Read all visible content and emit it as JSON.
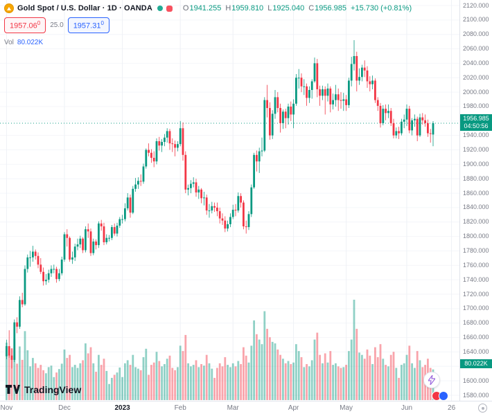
{
  "header": {
    "symbol_title": "Gold Spot / U.S. Dollar · 1D · OANDA",
    "ohlc": {
      "o_label": "O",
      "o_value": "1941.255",
      "h_label": "H",
      "h_value": "1959.810",
      "l_label": "L",
      "l_value": "1925.040",
      "c_label": "C",
      "c_value": "1956.985",
      "change": "+15.730 (+0.81%)"
    },
    "bid": "1957.06",
    "bid_sup": "0",
    "spread": "25.0",
    "ask": "1957.31",
    "ask_sup": "0",
    "vol_label": "Vol",
    "vol_value": "80.022K"
  },
  "axis": {
    "last_price": "1956.985",
    "countdown": "04:50:56",
    "volume_flag": "80.022K"
  },
  "footer": {
    "brand": "TradingView"
  },
  "colors": {
    "up": "#089981",
    "down": "#F23645",
    "vol_up": "rgba(8,153,129,0.45)",
    "vol_down": "rgba(242,54,69,0.45)",
    "flag_bg": "#089981",
    "bid": "#F23645",
    "ask": "#2962FF",
    "axis_text": "#787B86",
    "title_text": "#131722",
    "grid_v": "#EEF1F6",
    "grid_h": "#F4F6FA"
  },
  "chart_data": {
    "type": "candlestick",
    "title": "Gold Spot / U.S. Dollar",
    "interval": "1D",
    "exchange": "OANDA",
    "current": {
      "open": 1941.255,
      "high": 1959.81,
      "low": 1925.04,
      "close": 1956.985,
      "change": 15.73,
      "change_pct": 0.81,
      "volume": "80.022K"
    },
    "y_axis": {
      "min": 1580,
      "max": 2120,
      "step": 20,
      "decimals": 3
    },
    "x_ticks": [
      {
        "label": "Nov",
        "i": 0
      },
      {
        "label": "Dec",
        "i": 22
      },
      {
        "label": "2023",
        "i": 44,
        "bold": true
      },
      {
        "label": "Feb",
        "i": 66
      },
      {
        "label": "Mar",
        "i": 86
      },
      {
        "label": "Apr",
        "i": 109
      },
      {
        "label": "May",
        "i": 129
      },
      {
        "label": "Jun",
        "i": 152
      },
      {
        "label": "26",
        "i": 169
      }
    ],
    "candles": [
      [
        1634,
        1657,
        1630,
        1648
      ],
      [
        1648,
        1670,
        1632,
        1635
      ],
      [
        1635,
        1645,
        1617,
        1629
      ],
      [
        1629,
        1685,
        1626,
        1681
      ],
      [
        1681,
        1688,
        1666,
        1675
      ],
      [
        1675,
        1717,
        1672,
        1712
      ],
      [
        1712,
        1722,
        1702,
        1706
      ],
      [
        1706,
        1760,
        1704,
        1755
      ],
      [
        1755,
        1775,
        1750,
        1771
      ],
      [
        1771,
        1780,
        1758,
        1771
      ],
      [
        1771,
        1787,
        1765,
        1779
      ],
      [
        1779,
        1782,
        1768,
        1773
      ],
      [
        1773,
        1778,
        1756,
        1761
      ],
      [
        1761,
        1770,
        1748,
        1751
      ],
      [
        1751,
        1757,
        1732,
        1738
      ],
      [
        1738,
        1748,
        1733,
        1740
      ],
      [
        1740,
        1754,
        1736,
        1749
      ],
      [
        1749,
        1760,
        1744,
        1755
      ],
      [
        1755,
        1761,
        1749,
        1755
      ],
      [
        1755,
        1758,
        1736,
        1741
      ],
      [
        1741,
        1755,
        1738,
        1749
      ],
      [
        1749,
        1772,
        1746,
        1768
      ],
      [
        1768,
        1806,
        1765,
        1803
      ],
      [
        1803,
        1810,
        1786,
        1798
      ],
      [
        1798,
        1800,
        1765,
        1768
      ],
      [
        1768,
        1779,
        1762,
        1771
      ],
      [
        1771,
        1790,
        1766,
        1786
      ],
      [
        1786,
        1797,
        1781,
        1789
      ],
      [
        1789,
        1801,
        1784,
        1797
      ],
      [
        1797,
        1799,
        1777,
        1781
      ],
      [
        1781,
        1814,
        1778,
        1810
      ],
      [
        1810,
        1818,
        1798,
        1807
      ],
      [
        1807,
        1811,
        1773,
        1777
      ],
      [
        1777,
        1797,
        1774,
        1793
      ],
      [
        1793,
        1796,
        1782,
        1788
      ],
      [
        1788,
        1821,
        1784,
        1818
      ],
      [
        1818,
        1823,
        1808,
        1814
      ],
      [
        1814,
        1819,
        1788,
        1792
      ],
      [
        1792,
        1803,
        1789,
        1798
      ],
      [
        1798,
        1802,
        1793,
        1798
      ],
      [
        1798,
        1816,
        1795,
        1813
      ],
      [
        1813,
        1818,
        1801,
        1804
      ],
      [
        1804,
        1819,
        1800,
        1815
      ],
      [
        1815,
        1827,
        1812,
        1824
      ],
      [
        1824,
        1830,
        1818,
        1824
      ],
      [
        1824,
        1846,
        1821,
        1839
      ],
      [
        1839,
        1860,
        1836,
        1854
      ],
      [
        1854,
        1858,
        1826,
        1833
      ],
      [
        1833,
        1870,
        1831,
        1866
      ],
      [
        1866,
        1881,
        1862,
        1872
      ],
      [
        1872,
        1882,
        1866,
        1877
      ],
      [
        1877,
        1886,
        1870,
        1876
      ],
      [
        1876,
        1901,
        1873,
        1897
      ],
      [
        1897,
        1922,
        1894,
        1920
      ],
      [
        1920,
        1929,
        1911,
        1916
      ],
      [
        1916,
        1921,
        1902,
        1909
      ],
      [
        1909,
        1918,
        1896,
        1904
      ],
      [
        1904,
        1936,
        1900,
        1932
      ],
      [
        1932,
        1938,
        1919,
        1926
      ],
      [
        1926,
        1935,
        1917,
        1931
      ],
      [
        1931,
        1942,
        1925,
        1937
      ],
      [
        1937,
        1950,
        1930,
        1946
      ],
      [
        1946,
        1949,
        1920,
        1929
      ],
      [
        1929,
        1936,
        1917,
        1928
      ],
      [
        1928,
        1933,
        1911,
        1923
      ],
      [
        1923,
        1932,
        1918,
        1928
      ],
      [
        1928,
        1960,
        1925,
        1950
      ],
      [
        1950,
        1958,
        1905,
        1913
      ],
      [
        1913,
        1918,
        1860,
        1865
      ],
      [
        1865,
        1872,
        1857,
        1867
      ],
      [
        1867,
        1878,
        1860,
        1873
      ],
      [
        1873,
        1882,
        1868,
        1875
      ],
      [
        1875,
        1880,
        1855,
        1861
      ],
      [
        1861,
        1870,
        1852,
        1865
      ],
      [
        1865,
        1867,
        1846,
        1853
      ],
      [
        1853,
        1862,
        1843,
        1854
      ],
      [
        1854,
        1858,
        1830,
        1836
      ],
      [
        1836,
        1845,
        1826,
        1836
      ],
      [
        1836,
        1848,
        1832,
        1842
      ],
      [
        1842,
        1847,
        1834,
        1840
      ],
      [
        1840,
        1847,
        1828,
        1835
      ],
      [
        1835,
        1840,
        1818,
        1825
      ],
      [
        1825,
        1832,
        1816,
        1822
      ],
      [
        1822,
        1828,
        1806,
        1811
      ],
      [
        1811,
        1822,
        1807,
        1817
      ],
      [
        1817,
        1832,
        1813,
        1827
      ],
      [
        1827,
        1844,
        1824,
        1837
      ],
      [
        1837,
        1845,
        1828,
        1836
      ],
      [
        1836,
        1861,
        1833,
        1856
      ],
      [
        1856,
        1860,
        1840,
        1847
      ],
      [
        1847,
        1850,
        1810,
        1814
      ],
      [
        1814,
        1822,
        1804,
        1813
      ],
      [
        1813,
        1835,
        1809,
        1831
      ],
      [
        1831,
        1872,
        1827,
        1868
      ],
      [
        1868,
        1916,
        1866,
        1913
      ],
      [
        1913,
        1919,
        1890,
        1904
      ],
      [
        1904,
        1923,
        1888,
        1918
      ],
      [
        1918,
        1937,
        1911,
        1919
      ],
      [
        1919,
        1993,
        1917,
        1989
      ],
      [
        1989,
        2010,
        1965,
        1978
      ],
      [
        1978,
        1986,
        1934,
        1940
      ],
      [
        1940,
        1975,
        1935,
        1970
      ],
      [
        1970,
        2003,
        1963,
        1993
      ],
      [
        1993,
        2000,
        1972,
        1978
      ],
      [
        1978,
        1984,
        1944,
        1957
      ],
      [
        1957,
        1976,
        1949,
        1973
      ],
      [
        1973,
        1977,
        1950,
        1964
      ],
      [
        1964,
        1984,
        1955,
        1980
      ],
      [
        1980,
        1987,
        1960,
        1969
      ],
      [
        1969,
        1990,
        1950,
        1984
      ],
      [
        1984,
        2025,
        1981,
        2020
      ],
      [
        2020,
        2032,
        2005,
        2020
      ],
      [
        2020,
        2026,
        2000,
        2008
      ],
      [
        2008,
        2018,
        1996,
        2008
      ],
      [
        2008,
        2012,
        1981,
        1992
      ],
      [
        1992,
        2008,
        1985,
        2003
      ],
      [
        2003,
        2018,
        1991,
        2015
      ],
      [
        2015,
        2048,
        2013,
        2040
      ],
      [
        2040,
        2046,
        1993,
        2004
      ],
      [
        2004,
        2009,
        1981,
        1995
      ],
      [
        1995,
        2009,
        1989,
        2004
      ],
      [
        2004,
        2008,
        1969,
        1995
      ],
      [
        1995,
        2012,
        1987,
        2005
      ],
      [
        2005,
        2008,
        1972,
        1983
      ],
      [
        1983,
        1998,
        1976,
        1989
      ],
      [
        1989,
        2010,
        1980,
        1997
      ],
      [
        1997,
        2005,
        1974,
        1989
      ],
      [
        1989,
        2000,
        1977,
        1988
      ],
      [
        1988,
        1999,
        1974,
        1990
      ],
      [
        1990,
        1996,
        1974,
        1982
      ],
      [
        1982,
        2020,
        1978,
        2016
      ],
      [
        2016,
        2049,
        2008,
        2039
      ],
      [
        2039,
        2072,
        2030,
        2050
      ],
      [
        2050,
        2056,
        2001,
        2016
      ],
      [
        2016,
        2033,
        2010,
        2021
      ],
      [
        2021,
        2038,
        2015,
        2034
      ],
      [
        2034,
        2044,
        2021,
        2030
      ],
      [
        2030,
        2036,
        2006,
        2015
      ],
      [
        2015,
        2022,
        2001,
        2011
      ],
      [
        2011,
        2023,
        2004,
        2016
      ],
      [
        2016,
        2019,
        1985,
        1989
      ],
      [
        1989,
        1993,
        1974,
        1981
      ],
      [
        1981,
        1985,
        1951,
        1957
      ],
      [
        1957,
        1982,
        1954,
        1977
      ],
      [
        1977,
        1983,
        1961,
        1971
      ],
      [
        1971,
        1983,
        1964,
        1974
      ],
      [
        1974,
        1978,
        1953,
        1957
      ],
      [
        1957,
        1963,
        1936,
        1940
      ],
      [
        1940,
        1951,
        1936,
        1946
      ],
      [
        1946,
        1952,
        1935,
        1943
      ],
      [
        1943,
        1963,
        1940,
        1959
      ],
      [
        1959,
        1969,
        1950,
        1962
      ],
      [
        1962,
        1983,
        1953,
        1977
      ],
      [
        1977,
        1981,
        1943,
        1947
      ],
      [
        1947,
        1964,
        1940,
        1961
      ],
      [
        1961,
        1969,
        1952,
        1963
      ],
      [
        1963,
        1966,
        1932,
        1940
      ],
      [
        1940,
        1970,
        1938,
        1965
      ],
      [
        1965,
        1971,
        1955,
        1961
      ],
      [
        1961,
        1969,
        1952,
        1957
      ],
      [
        1957,
        1962,
        1938,
        1943
      ],
      [
        1943,
        1949,
        1930,
        1942
      ],
      [
        1941.255,
        1959.81,
        1925.04,
        1956.985
      ]
    ],
    "volumes": [
      150,
      120,
      135,
      160,
      95,
      140,
      105,
      180,
      130,
      88,
      110,
      96,
      84,
      92,
      78,
      70,
      86,
      90,
      60,
      72,
      81,
      95,
      132,
      110,
      118,
      86,
      92,
      84,
      96,
      104,
      148,
      122,
      138,
      96,
      74,
      118,
      92,
      108,
      76,
      42,
      58,
      66,
      72,
      85,
      60,
      96,
      104,
      92,
      118,
      86,
      82,
      78,
      112,
      134,
      66,
      92,
      98,
      126,
      102,
      88,
      94,
      108,
      116,
      84,
      78,
      86,
      142,
      128,
      170,
      96,
      88,
      92,
      104,
      86,
      94,
      90,
      118,
      96,
      82,
      58,
      84,
      96,
      88,
      112,
      92,
      86,
      96,
      88,
      102,
      94,
      138,
      116,
      98,
      142,
      208,
      172,
      158,
      146,
      232,
      186,
      164,
      152,
      148,
      132,
      118,
      108,
      96,
      102,
      94,
      98,
      146,
      128,
      112,
      86,
      94,
      88,
      104,
      158,
      176,
      118,
      96,
      122,
      98,
      128,
      92,
      96,
      88,
      84,
      86,
      92,
      128,
      158,
      262,
      186,
      124,
      118,
      108,
      132,
      116,
      94,
      138,
      112,
      146,
      108,
      92,
      88,
      118,
      126,
      84,
      58,
      92,
      96,
      118,
      142,
      96,
      84,
      128,
      104,
      86,
      92,
      108,
      84,
      80.022
    ]
  }
}
